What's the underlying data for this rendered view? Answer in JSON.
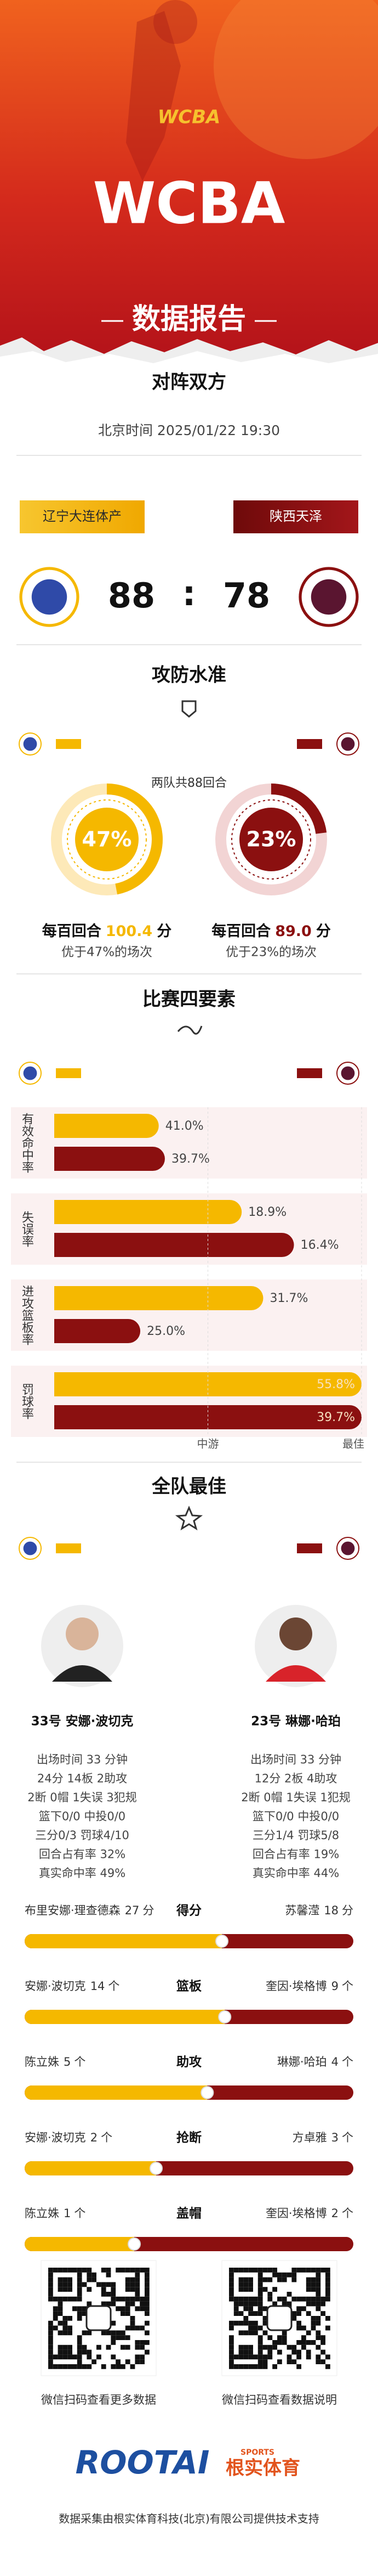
{
  "header": {
    "logo": "WCBA",
    "title": "WCBA",
    "subtitle": "数据报告"
  },
  "matchup": {
    "heading": "对阵双方",
    "time": "北京时间 2025/01/22 19:30",
    "separator": ":",
    "teams": [
      {
        "name": "辽宁大连体产",
        "score": 88,
        "color": "#f5b800"
      },
      {
        "name": "陕西天泽",
        "score": 78,
        "color": "#8b1010"
      }
    ]
  },
  "efficiency": {
    "heading": "攻防水准",
    "possessions": "两队共88回合",
    "xlim": [
      0,
      100
    ],
    "teams": [
      {
        "percentile": 47,
        "percentile_label": "47%",
        "per100_prefix": "每百回合",
        "per100": 100.4,
        "per100_label": "100.4",
        "per100_unit": "分",
        "note": "优于47%的场次"
      },
      {
        "percentile": 23,
        "percentile_label": "23%",
        "per100_prefix": "每百回合",
        "per100": 89.0,
        "per100_label": "89.0",
        "per100_unit": "分",
        "note": "优于23%的场次"
      }
    ]
  },
  "four_factors": {
    "heading": "比赛四要素",
    "xlim": [
      0,
      100
    ],
    "xticks": [
      {
        "value": 50,
        "label": "中游"
      },
      {
        "value": 100,
        "label": "最佳"
      }
    ],
    "factors": [
      {
        "name": "有效命中率",
        "values": [
          41.0,
          39.7
        ],
        "value_labels": [
          "41.0%",
          "39.7%"
        ],
        "levels": [
          34,
          36
        ]
      },
      {
        "name": "失误率",
        "values": [
          18.9,
          16.4
        ],
        "value_labels": [
          "18.9%",
          "16.4%"
        ],
        "levels": [
          61,
          78
        ]
      },
      {
        "name": "进攻篮板率",
        "values": [
          31.7,
          25.0
        ],
        "value_labels": [
          "31.7%",
          "25.0%"
        ],
        "levels": [
          68,
          28
        ]
      },
      {
        "name": "罚球率",
        "values": [
          55.8,
          39.7
        ],
        "value_labels": [
          "55.8%",
          "39.7%"
        ],
        "levels": [
          100,
          100
        ]
      }
    ]
  },
  "best": {
    "heading": "全队最佳",
    "players": [
      {
        "name": "33号 安娜·波切克",
        "lines": [
          "出场时间 33 分钟",
          "24分 14板 2助攻",
          "2断 0帽 1失误 3犯规",
          "篮下0/0 中投0/0",
          "三分0/3 罚球4/10",
          "回合占有率 32%",
          "真实命中率 49%"
        ]
      },
      {
        "name": "23号 琳娜·哈珀",
        "lines": [
          "出场时间 33 分钟",
          "12分 2板 4助攻",
          "2断 0帽 1失误 1犯规",
          "篮下0/0 中投0/0",
          "三分1/4 罚球5/8",
          "回合占有率 19%",
          "真实命中率 44%"
        ]
      }
    ],
    "leaders": [
      {
        "stat": "得分",
        "left": {
          "player": "布里安娜·理查德森",
          "value": 27,
          "unit": "分"
        },
        "right": {
          "player": "苏馨滢",
          "value": 18,
          "unit": "分"
        }
      },
      {
        "stat": "篮板",
        "left": {
          "player": "安娜·波切克",
          "value": 14,
          "unit": "个"
        },
        "right": {
          "player": "奎因·埃格博",
          "value": 9,
          "unit": "个"
        }
      },
      {
        "stat": "助攻",
        "left": {
          "player": "陈立姝",
          "value": 5,
          "unit": "个"
        },
        "right": {
          "player": "琳娜·哈珀",
          "value": 4,
          "unit": "个"
        }
      },
      {
        "stat": "抢断",
        "left": {
          "player": "安娜·波切克",
          "value": 2,
          "unit": "个"
        },
        "right": {
          "player": "方卓雅",
          "value": 3,
          "unit": "个"
        }
      },
      {
        "stat": "盖帽",
        "left": {
          "player": "陈立姝",
          "value": 1,
          "unit": "个"
        },
        "right": {
          "player": "奎因·埃格博",
          "value": 2,
          "unit": "个"
        }
      }
    ]
  },
  "footer": {
    "qr_captions": [
      "微信扫码查看更多数据",
      "微信扫码查看数据说明"
    ],
    "brand": "ROOTAI",
    "brand_cn": "根实体育",
    "brand_tag": "SPORTS",
    "credit": "数据采集由根实体育科技(北京)有限公司提供技术支持"
  }
}
